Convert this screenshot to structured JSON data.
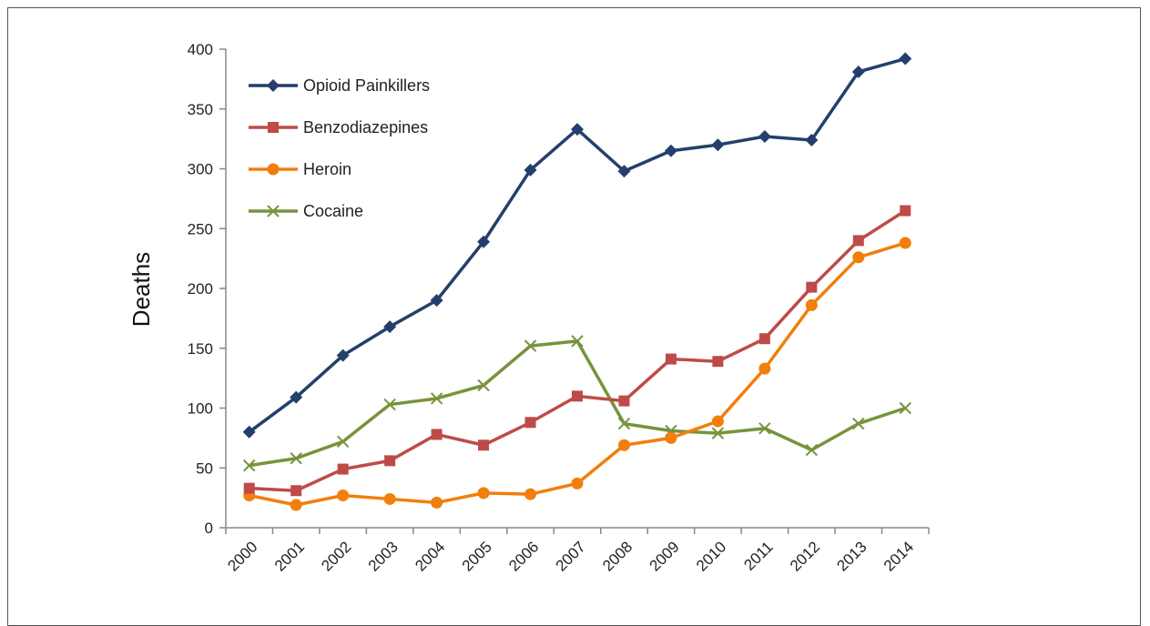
{
  "chart_data": {
    "type": "line",
    "title": "",
    "xlabel": "",
    "ylabel": "Deaths",
    "ylim": [
      0,
      400
    ],
    "yticks": [
      0,
      50,
      100,
      150,
      200,
      250,
      300,
      350,
      400
    ],
    "grid": false,
    "legend_position": "top-left",
    "categories": [
      "2000",
      "2001",
      "2002",
      "2003",
      "2004",
      "2005",
      "2006",
      "2007",
      "2008",
      "2009",
      "2010",
      "2011",
      "2012",
      "2013",
      "2014"
    ],
    "series": [
      {
        "name": "Opioid Painkillers",
        "color": "#243F6C",
        "marker": "diamond",
        "values": [
          80,
          109,
          144,
          168,
          190,
          239,
          299,
          333,
          298,
          315,
          320,
          327,
          324,
          381,
          392
        ]
      },
      {
        "name": "Benzodiazepines",
        "color": "#BE4B48",
        "marker": "square",
        "values": [
          33,
          31,
          49,
          56,
          78,
          69,
          88,
          110,
          106,
          141,
          139,
          158,
          201,
          240,
          265
        ]
      },
      {
        "name": "Heroin",
        "color": "#F27E0C",
        "marker": "circle",
        "values": [
          27,
          19,
          27,
          24,
          21,
          29,
          28,
          37,
          69,
          75,
          89,
          133,
          186,
          226,
          238
        ]
      },
      {
        "name": "Cocaine",
        "color": "#77933C",
        "marker": "x",
        "values": [
          52,
          58,
          72,
          103,
          108,
          119,
          152,
          156,
          87,
          81,
          79,
          83,
          65,
          87,
          100
        ]
      }
    ]
  }
}
